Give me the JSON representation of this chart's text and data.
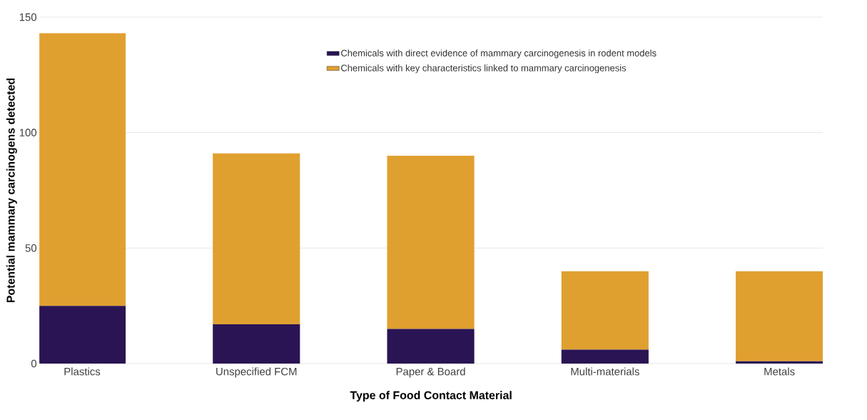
{
  "chart_data": {
    "type": "bar",
    "stacked": true,
    "xlabel": "Type of Food Contact Material",
    "ylabel": "Potential mammary carcinogens detected",
    "categories": [
      "Plastics",
      "Unspecified FCM",
      "Paper & Board",
      "Multi-materials",
      "Metals"
    ],
    "series": [
      {
        "name": "Chemicals with direct evidence of mammary carcinogenesis in rodent models",
        "color": "#2a1454",
        "values": [
          25,
          17,
          15,
          6,
          1
        ]
      },
      {
        "name": "Chemicals with key characteristics linked to mammary carcinogenesis",
        "color": "#e0a030",
        "values": [
          118,
          74,
          75,
          34,
          39
        ]
      }
    ],
    "ylim": [
      0,
      150
    ],
    "yticks": [
      0,
      50,
      100,
      150
    ],
    "grid": "y",
    "legend": "top right"
  }
}
